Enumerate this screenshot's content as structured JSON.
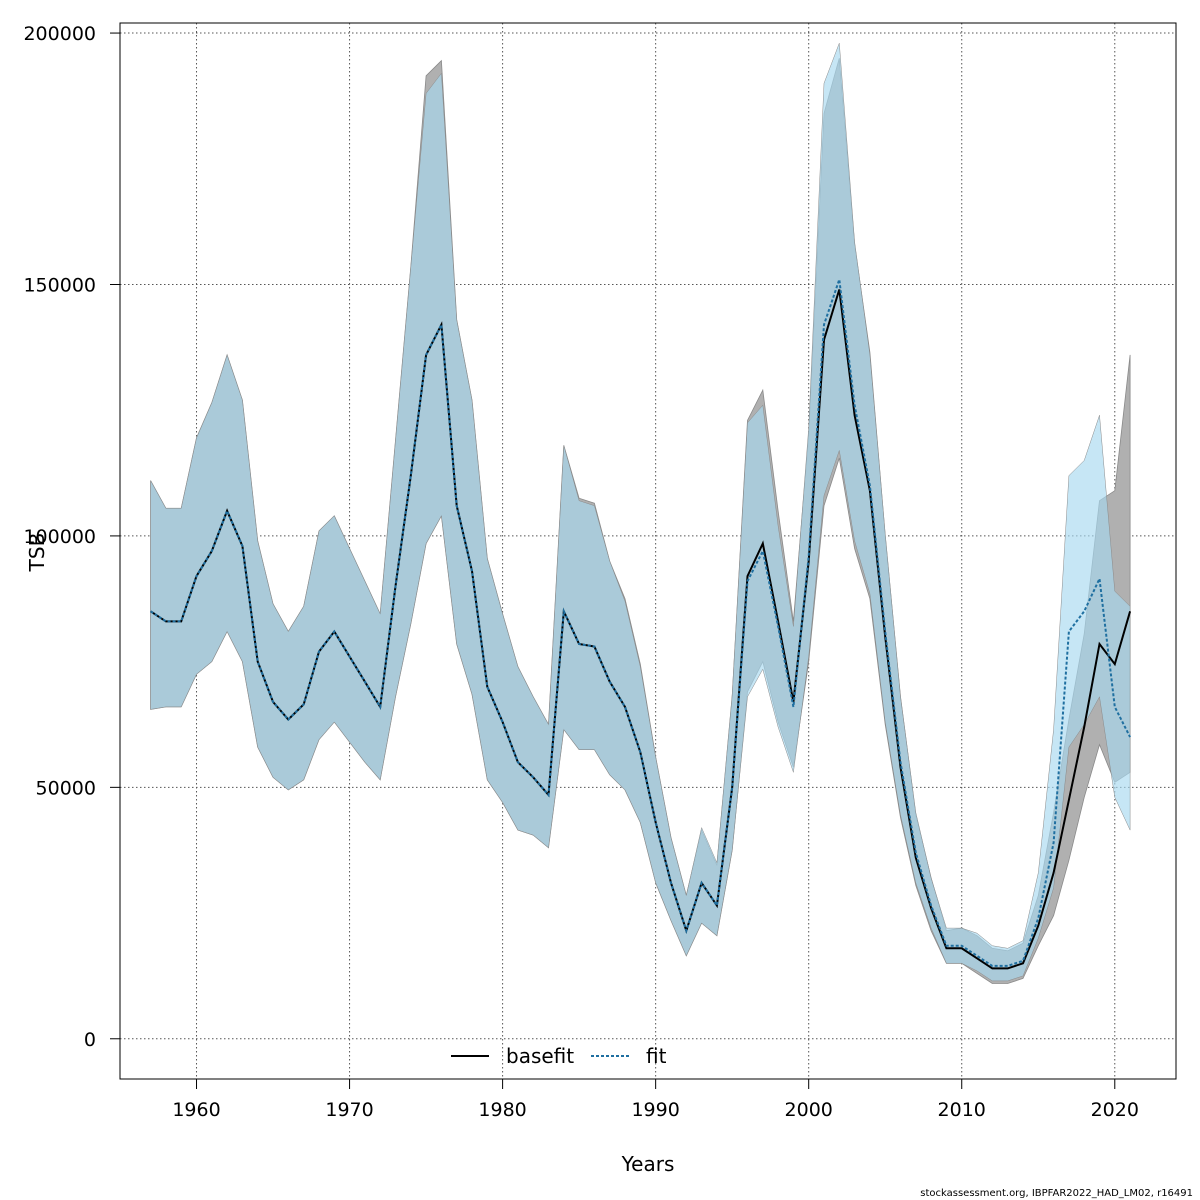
{
  "chart_data": {
    "type": "line",
    "xlabel": "Years",
    "ylabel": "TSB",
    "xlim": [
      1955,
      2024
    ],
    "ylim": [
      -8000,
      202000
    ],
    "x_ticks": [
      1960,
      1970,
      1980,
      1990,
      2000,
      2010,
      2020
    ],
    "y_ticks": [
      0,
      50000,
      100000,
      150000,
      200000
    ],
    "x_tick_labels": [
      "1960",
      "1970",
      "1980",
      "1990",
      "2000",
      "2010",
      "2020"
    ],
    "y_tick_labels": [
      "0",
      "50000",
      "100000",
      "150000",
      "200000"
    ],
    "grid": true,
    "legend_position": "bottom-center",
    "colors": {
      "basefit_band": "#b0b0b0",
      "fit_band": "#a8d8f0",
      "overlap_band": "#a3c4d6",
      "band_edge": "#8a8a8a",
      "basefit_line": "#000000",
      "fit_line": "#1f6fa0"
    },
    "series": [
      {
        "name": "basefit",
        "style": "solid",
        "x": [
          1957,
          1958,
          1959,
          1960,
          1961,
          1962,
          1963,
          1964,
          1965,
          1966,
          1967,
          1968,
          1969,
          1970,
          1971,
          1972,
          1973,
          1974,
          1975,
          1976,
          1977,
          1978,
          1979,
          1980,
          1981,
          1982,
          1983,
          1984,
          1985,
          1986,
          1987,
          1988,
          1989,
          1990,
          1991,
          1992,
          1993,
          1994,
          1995,
          1996,
          1997,
          1998,
          1999,
          2000,
          2001,
          2002,
          2003,
          2004,
          2005,
          2006,
          2007,
          2008,
          2009,
          2010,
          2011,
          2012,
          2013,
          2014,
          2015,
          2016,
          2017,
          2018,
          2019,
          2020,
          2021
        ],
        "values": [
          85000,
          83000,
          83000,
          92000,
          97000,
          105000,
          98000,
          75000,
          67000,
          63500,
          66500,
          77000,
          81000,
          76000,
          71000,
          66000,
          90000,
          112000,
          136000,
          142000,
          106000,
          93000,
          70000,
          63000,
          55000,
          52000,
          48500,
          85000,
          78500,
          78000,
          71000,
          66000,
          57000,
          43000,
          31000,
          21500,
          31000,
          26500,
          50000,
          92000,
          98500,
          83000,
          67000,
          95000,
          139000,
          149000,
          124000,
          109000,
          80000,
          54000,
          36000,
          26000,
          18000,
          18000,
          16000,
          14000,
          14000,
          15000,
          22500,
          33000,
          47500,
          62000,
          78500,
          74500,
          85000
        ],
        "lower": [
          65500,
          66000,
          66000,
          72500,
          75000,
          81000,
          75000,
          58000,
          52000,
          49500,
          51500,
          59500,
          63000,
          59000,
          55000,
          51500,
          68000,
          82500,
          98500,
          104000,
          78500,
          68500,
          51500,
          47000,
          41500,
          40500,
          38000,
          61500,
          57500,
          57500,
          52500,
          49500,
          43000,
          31000,
          23500,
          16500,
          23000,
          20500,
          37500,
          69000,
          75000,
          63000,
          54000,
          75000,
          106000,
          115500,
          97500,
          87500,
          62500,
          44000,
          30500,
          21500,
          15000,
          15000,
          13000,
          11000,
          11000,
          12000,
          18500,
          24500,
          35500,
          48000,
          58500,
          51000,
          53000
        ],
        "upper": [
          111000,
          105500,
          105500,
          119500,
          126500,
          136000,
          127000,
          99000,
          86500,
          81000,
          86000,
          101000,
          104000,
          97500,
          91000,
          84500,
          119000,
          153500,
          191500,
          194500,
          143000,
          127000,
          95500,
          84500,
          74000,
          68000,
          62500,
          118000,
          107500,
          106500,
          95000,
          87500,
          74500,
          56000,
          40000,
          28500,
          41500,
          34500,
          68000,
          123000,
          129000,
          105000,
          83000,
          120000,
          184000,
          195000,
          158000,
          136500,
          100000,
          68000,
          44500,
          32000,
          21500,
          22000,
          20500,
          18000,
          17500,
          19000,
          28500,
          45000,
          63500,
          80500,
          107000,
          109000,
          136000
        ]
      },
      {
        "name": "fit",
        "style": "dashed",
        "x": [
          1957,
          1958,
          1959,
          1960,
          1961,
          1962,
          1963,
          1964,
          1965,
          1966,
          1967,
          1968,
          1969,
          1970,
          1971,
          1972,
          1973,
          1974,
          1975,
          1976,
          1977,
          1978,
          1979,
          1980,
          1981,
          1982,
          1983,
          1984,
          1985,
          1986,
          1987,
          1988,
          1989,
          1990,
          1991,
          1992,
          1993,
          1994,
          1995,
          1996,
          1997,
          1998,
          1999,
          2000,
          2001,
          2002,
          2003,
          2004,
          2005,
          2006,
          2007,
          2008,
          2009,
          2010,
          2011,
          2012,
          2013,
          2014,
          2015,
          2016,
          2017,
          2018,
          2019,
          2020,
          2021
        ],
        "values": [
          85000,
          83000,
          83000,
          92000,
          97000,
          105000,
          98000,
          75000,
          67000,
          63500,
          66500,
          77000,
          81000,
          76000,
          71000,
          66000,
          90000,
          112000,
          136000,
          142000,
          106000,
          93000,
          70000,
          63000,
          55000,
          52000,
          48500,
          85000,
          78500,
          78000,
          71000,
          66000,
          57000,
          43000,
          31000,
          21500,
          31000,
          26500,
          50000,
          91000,
          97000,
          82000,
          66000,
          96000,
          142000,
          151000,
          126000,
          110000,
          81000,
          55000,
          37000,
          26500,
          18500,
          18500,
          16500,
          14500,
          14500,
          15500,
          24000,
          39000,
          81000,
          85000,
          91500,
          66000,
          60000
        ],
        "lower": [
          65500,
          66000,
          66000,
          72500,
          75000,
          81000,
          75000,
          58000,
          52000,
          49500,
          51500,
          59500,
          63000,
          59000,
          55000,
          51500,
          68000,
          82500,
          98500,
          104000,
          78500,
          68500,
          51500,
          47000,
          41500,
          40500,
          38000,
          61500,
          57500,
          57500,
          52500,
          49500,
          43000,
          31000,
          23500,
          16500,
          23000,
          20500,
          37500,
          68000,
          73500,
          62000,
          53000,
          76000,
          108000,
          117000,
          99000,
          88500,
          63000,
          44500,
          31000,
          22000,
          15000,
          15000,
          13500,
          11500,
          11500,
          12500,
          20000,
          30000,
          58000,
          62500,
          68000,
          48000,
          41500
        ],
        "upper": [
          111000,
          105500,
          105500,
          119500,
          126500,
          136000,
          127000,
          99000,
          86500,
          81000,
          86000,
          101000,
          104000,
          97500,
          91000,
          84500,
          119000,
          153500,
          188000,
          192000,
          143000,
          127000,
          95500,
          84500,
          74000,
          68000,
          62500,
          118000,
          107000,
          106000,
          95000,
          87000,
          74000,
          56000,
          40000,
          28500,
          42000,
          35000,
          68500,
          122500,
          126000,
          102000,
          82000,
          121500,
          190000,
          198000,
          158500,
          136000,
          100500,
          68000,
          45000,
          32000,
          22000,
          22000,
          21000,
          18500,
          18000,
          19500,
          33000,
          61500,
          112000,
          115000,
          124000,
          89000,
          86000
        ]
      }
    ]
  },
  "footer": {
    "text": "stockassessment.org, IBPFAR2022_HAD_LM02, r16491"
  }
}
